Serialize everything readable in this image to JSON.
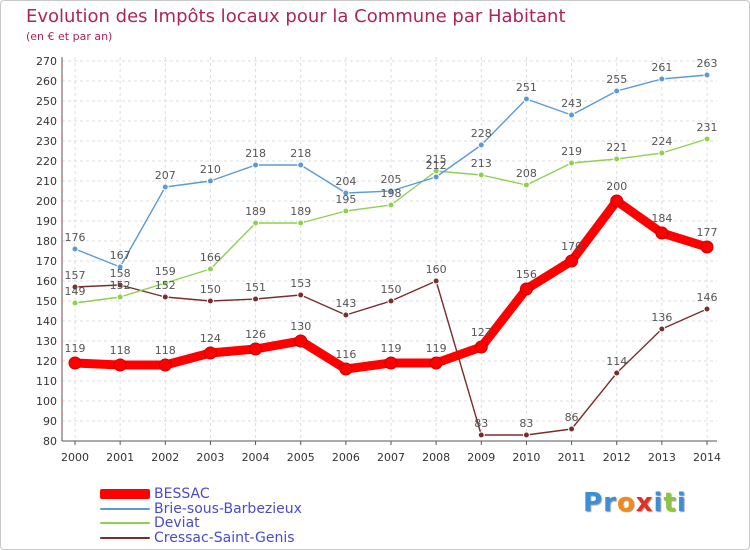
{
  "chart_data": {
    "type": "line",
    "title": "Evolution des Impôts locaux pour la Commune par Habitant",
    "subtitle": "(en € et par an)",
    "x": [
      2000,
      2001,
      2002,
      2003,
      2004,
      2005,
      2006,
      2007,
      2008,
      2009,
      2010,
      2011,
      2012,
      2013,
      2014
    ],
    "ylim": [
      80,
      270
    ],
    "yticks": [
      80,
      90,
      100,
      110,
      120,
      130,
      140,
      150,
      160,
      170,
      180,
      190,
      200,
      210,
      220,
      230,
      240,
      250,
      260,
      270
    ],
    "grid": true,
    "legend_position": "bottom-left",
    "series": [
      {
        "name": "BESSAC",
        "color": "#ff0000",
        "values": [
          119,
          118,
          118,
          124,
          126,
          130,
          116,
          119,
          119,
          127,
          156,
          170,
          200,
          184,
          177
        ]
      },
      {
        "name": "Brie-sous-Barbezieux",
        "color": "#5b9bd5",
        "values": [
          176,
          167,
          207,
          210,
          218,
          218,
          204,
          205,
          212,
          228,
          251,
          243,
          255,
          261,
          263
        ]
      },
      {
        "name": "Deviat",
        "color": "#8fd14f",
        "values": [
          149,
          152,
          159,
          166,
          189,
          189,
          195,
          198,
          215,
          213,
          208,
          219,
          221,
          224,
          231
        ]
      },
      {
        "name": "Cressac-Saint-Genis",
        "color": "#7b2d2d",
        "values": [
          157,
          158,
          152,
          150,
          151,
          153,
          143,
          150,
          160,
          83,
          83,
          86,
          114,
          136,
          146
        ]
      }
    ]
  },
  "logo": {
    "letters": [
      {
        "ch": "P",
        "color": "#3a8fd8"
      },
      {
        "ch": "r",
        "color": "#3a8fd8"
      },
      {
        "ch": "o",
        "color": "#f08c1a"
      },
      {
        "ch": "x",
        "color": "#e03020"
      },
      {
        "ch": "i",
        "color": "#3a8fd8"
      },
      {
        "ch": "t",
        "color": "#8cc63f"
      },
      {
        "ch": "i",
        "color": "#3a8fd8"
      }
    ]
  }
}
